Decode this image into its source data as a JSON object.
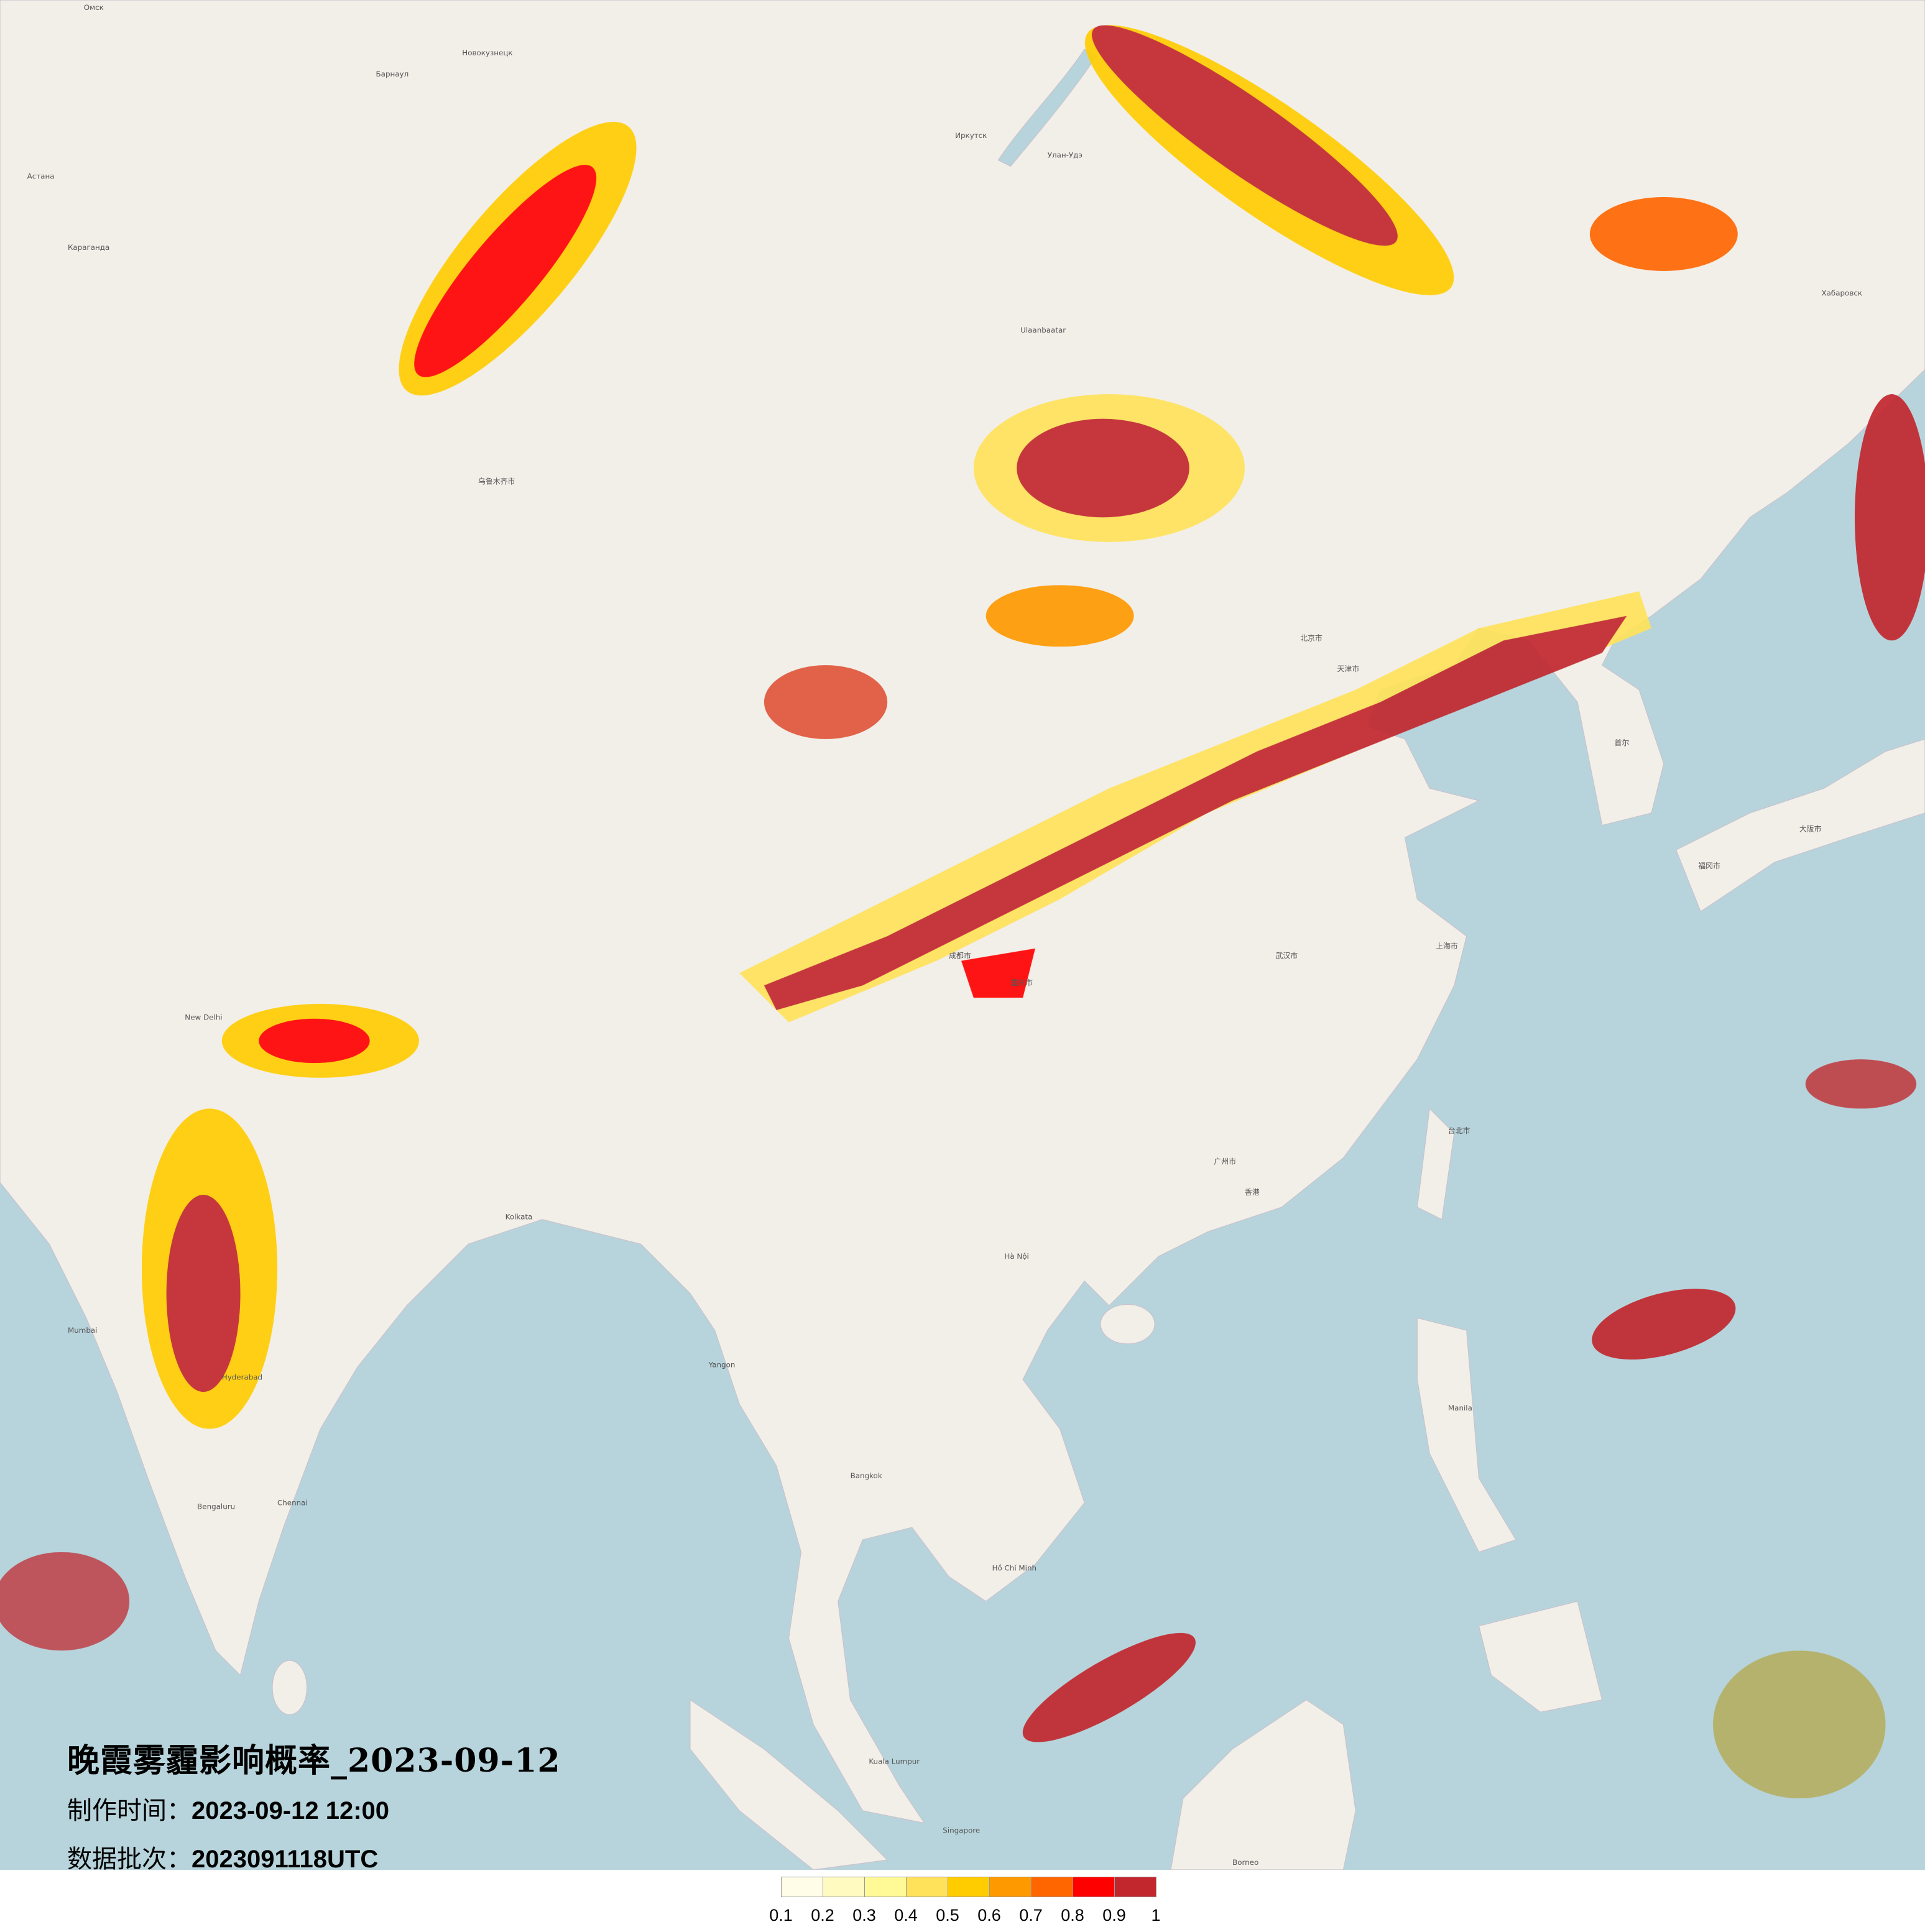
{
  "title": "晚霞雾霾影响概率_2023-09-12",
  "production_time": {
    "label": "制作时间：",
    "value": "2023-09-12 12:00"
  },
  "data_batch": {
    "label": "数据批次：",
    "value": "2023091118UTC"
  },
  "legend": {
    "colors": [
      "#fffde8",
      "#fffbc0",
      "#fffa96",
      "#ffe25a",
      "#ffcc00",
      "#ff9900",
      "#ff6600",
      "#ff0000",
      "#c1272d"
    ],
    "labels": [
      "0.1",
      "0.2",
      "0.3",
      "0.4",
      "0.5",
      "0.6",
      "0.7",
      "0.8",
      "0.9",
      "1"
    ]
  },
  "map": {
    "land_color": "#f2efe9",
    "sea_color": "#b7d4dc",
    "places": [
      "Омск",
      "Новокузнецк",
      "Барнаул",
      "Астана",
      "Караганда",
      "Иркутск",
      "Улан-Удэ",
      "Хабаровск",
      "Ulaanbaatar",
      "乌鲁木齐市",
      "北京市",
      "天津市",
      "上海市",
      "武汉市",
      "成都市",
      "重庆市",
      "广州市",
      "香港",
      "台北市",
      "首尔",
      "New Delhi",
      "Kolkata",
      "Mumbai",
      "Hyderabad",
      "Chennai",
      "Bengaluru",
      "Yangon",
      "Hà Nội",
      "Hồ Chí Minh",
      "Bangkok",
      "Manila",
      "Kuala Lumpur",
      "Singapore",
      "Borneo",
      "福冈市",
      "大阪市"
    ]
  }
}
